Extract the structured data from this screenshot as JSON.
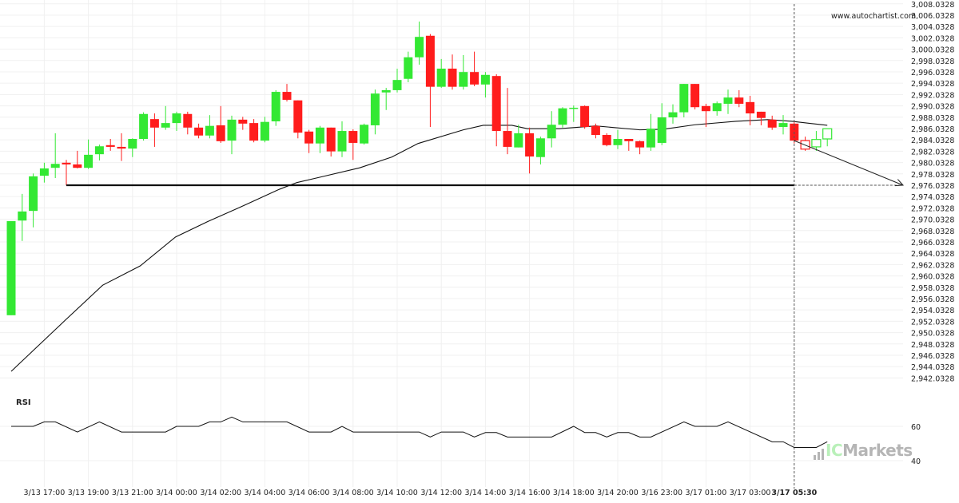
{
  "watermark": "www.autochartist.com",
  "rsi_label": "RSI",
  "brand": {
    "prefix": "IC",
    "suffix": "Markets"
  },
  "colors": {
    "bull": "#33e833",
    "bear": "#ff1c1c",
    "line": "#111111",
    "grid": "#f0f0f0"
  },
  "chart_data": {
    "type": "candlestick",
    "title": "",
    "price_axis": {
      "min": 2942.0328,
      "max": 3008.0328,
      "step": 2,
      "decimals": 4,
      "position": "right"
    },
    "x_labels": [
      {
        "label": "3/13 17:00",
        "index": 4
      },
      {
        "label": "3/13 19:00",
        "index": 8
      },
      {
        "label": "3/13 21:00",
        "index": 12
      },
      {
        "label": "3/14 00:00",
        "index": 16
      },
      {
        "label": "3/14 02:00",
        "index": 20
      },
      {
        "label": "3/14 04:00",
        "index": 24
      },
      {
        "label": "3/14 06:00",
        "index": 28
      },
      {
        "label": "3/14 08:00",
        "index": 32
      },
      {
        "label": "3/14 10:00",
        "index": 36
      },
      {
        "label": "3/14 12:00",
        "index": 40
      },
      {
        "label": "3/14 14:00",
        "index": 44
      },
      {
        "label": "3/14 16:00",
        "index": 48
      },
      {
        "label": "3/14 18:00",
        "index": 52
      },
      {
        "label": "3/14 20:00",
        "index": 56
      },
      {
        "label": "3/16 23:00",
        "index": 60
      },
      {
        "label": "3/17 01:00",
        "index": 64
      },
      {
        "label": "3/17 03:00",
        "index": 68
      },
      {
        "label": "3/17 05:30",
        "index": 72,
        "bold": true
      }
    ],
    "candles_ohlc": [
      [
        2953.1,
        2969.7,
        2953.1,
        2969.7
      ],
      [
        2969.8,
        2974.5,
        2966.2,
        2971.4
      ],
      [
        2971.5,
        2978.1,
        2968.6,
        2977.6
      ],
      [
        2977.7,
        2980.0,
        2976.5,
        2979.0
      ],
      [
        2979.1,
        2985.2,
        2977.3,
        2979.8
      ],
      [
        2980.0,
        2980.5,
        2976.0,
        2979.7
      ],
      [
        2979.7,
        2982.1,
        2979.0,
        2979.1
      ],
      [
        2979.1,
        2984.1,
        2978.9,
        2981.4
      ],
      [
        2981.5,
        2983.2,
        2980.4,
        2982.9
      ],
      [
        2983.1,
        2984.2,
        2982.1,
        2982.8
      ],
      [
        2982.8,
        2985.2,
        2980.3,
        2982.5
      ],
      [
        2982.5,
        2984.3,
        2981.0,
        2984.2
      ],
      [
        2984.2,
        2988.9,
        2983.9,
        2988.6
      ],
      [
        2987.7,
        2988.7,
        2982.8,
        2986.2
      ],
      [
        2986.2,
        2990.0,
        2985.8,
        2987.0
      ],
      [
        2987.0,
        2989.0,
        2985.6,
        2988.7
      ],
      [
        2988.6,
        2989.0,
        2985.0,
        2986.2
      ],
      [
        2986.2,
        2986.9,
        2984.3,
        2984.8
      ],
      [
        2984.8,
        2988.4,
        2984.3,
        2986.5
      ],
      [
        2986.6,
        2990.0,
        2983.5,
        2983.8
      ],
      [
        2983.9,
        2988.3,
        2981.5,
        2987.6
      ],
      [
        2987.6,
        2988.1,
        2985.8,
        2986.9
      ],
      [
        2987.0,
        2987.7,
        2983.6,
        2983.9
      ],
      [
        2983.9,
        2988.1,
        2983.6,
        2987.2
      ],
      [
        2987.3,
        2992.8,
        2986.5,
        2992.5
      ],
      [
        2992.5,
        2993.9,
        2990.8,
        2991.1
      ],
      [
        2991.0,
        2991.0,
        2984.3,
        2985.3
      ],
      [
        2985.5,
        2985.8,
        2981.7,
        2983.4
      ],
      [
        2983.4,
        2986.5,
        2981.7,
        2986.2
      ],
      [
        2986.2,
        2986.2,
        2981.1,
        2982.0
      ],
      [
        2982.0,
        2987.3,
        2981.0,
        2985.6
      ],
      [
        2985.6,
        2985.9,
        2980.5,
        2983.5
      ],
      [
        2983.4,
        2986.9,
        2983.2,
        2986.7
      ],
      [
        2986.6,
        2992.9,
        2985.0,
        2992.2
      ],
      [
        2992.4,
        2993.2,
        2989.3,
        2992.8
      ],
      [
        2992.8,
        2996.6,
        2992.4,
        2994.6
      ],
      [
        2994.8,
        2999.6,
        2994.2,
        2998.6
      ],
      [
        2998.6,
        3004.9,
        2997.3,
        3002.2
      ],
      [
        3002.4,
        3002.7,
        2986.3,
        2993.4
      ],
      [
        2993.4,
        2998.3,
        2993.2,
        2996.6
      ],
      [
        2996.6,
        2999.1,
        2992.9,
        2993.4
      ],
      [
        2993.4,
        2999.0,
        2992.9,
        2996.0
      ],
      [
        2996.0,
        2999.6,
        2993.5,
        2993.8
      ],
      [
        2993.8,
        2996.0,
        2991.5,
        2995.5
      ],
      [
        2995.3,
        2995.6,
        2982.9,
        2985.6
      ],
      [
        2985.6,
        2993.2,
        2981.5,
        2982.8
      ],
      [
        2982.7,
        2986.7,
        2982.7,
        2985.2
      ],
      [
        2985.2,
        2986.2,
        2978.1,
        2981.1
      ],
      [
        2981.0,
        2984.6,
        2979.7,
        2984.3
      ],
      [
        2984.3,
        2989.1,
        2982.7,
        2986.7
      ],
      [
        2986.7,
        2989.8,
        2986.2,
        2989.6
      ],
      [
        2989.6,
        2990.1,
        2987.2,
        2989.7
      ],
      [
        2990.0,
        2990.1,
        2986.0,
        2986.3
      ],
      [
        2986.5,
        2986.9,
        2984.3,
        2984.9
      ],
      [
        2984.9,
        2985.2,
        2982.9,
        2983.1
      ],
      [
        2983.1,
        2985.8,
        2982.4,
        2984.2
      ],
      [
        2984.2,
        2984.2,
        2982.1,
        2983.8
      ],
      [
        2983.8,
        2983.9,
        2981.5,
        2982.7
      ],
      [
        2982.7,
        2988.6,
        2982.1,
        2986.0
      ],
      [
        2983.5,
        2990.5,
        2983.1,
        2988.0
      ],
      [
        2988.0,
        2990.3,
        2986.9,
        2988.9
      ],
      [
        2988.9,
        2993.9,
        2988.0,
        2993.9
      ],
      [
        2993.9,
        2993.9,
        2989.4,
        2989.8
      ],
      [
        2990.0,
        2990.4,
        2986.3,
        2989.1
      ],
      [
        2989.1,
        2990.8,
        2988.3,
        2990.5
      ],
      [
        2990.4,
        2992.9,
        2988.6,
        2991.5
      ],
      [
        2991.5,
        2992.8,
        2989.8,
        2990.4
      ],
      [
        2990.7,
        2991.8,
        2986.6,
        2988.7
      ],
      [
        2989.0,
        2989.0,
        2986.6,
        2987.9
      ],
      [
        2987.6,
        2988.3,
        2985.8,
        2986.2
      ],
      [
        2986.3,
        2988.4,
        2985.0,
        2987.0
      ],
      [
        2986.9,
        2987.3,
        2983.4,
        2983.9
      ],
      [
        2983.9,
        2984.6,
        2982.1,
        2982.4
      ],
      [
        2982.8,
        2985.6,
        2982.1,
        2984.1
      ],
      [
        2984.2,
        2986.0,
        2982.9,
        2986.0
      ]
    ],
    "forecast_start_index": 73,
    "moving_average": [
      [
        1,
        2943.2
      ],
      [
        6,
        2952.4
      ],
      [
        9.3,
        2958.4
      ],
      [
        12.7,
        2961.8
      ],
      [
        15.9,
        2966.9
      ],
      [
        18.8,
        2969.6
      ],
      [
        21.7,
        2972.1
      ],
      [
        25.3,
        2975.3
      ],
      [
        26.9,
        2976.5
      ],
      [
        28.9,
        2977.4
      ],
      [
        32.6,
        2979.1
      ],
      [
        35.5,
        2981.0
      ],
      [
        37.9,
        2983.4
      ],
      [
        42,
        2985.8
      ],
      [
        43.8,
        2986.6
      ],
      [
        46.4,
        2986.6
      ],
      [
        47.8,
        2986.0
      ],
      [
        50.7,
        2986.0
      ],
      [
        54,
        2986.5
      ],
      [
        58,
        2985.8
      ],
      [
        60.1,
        2985.9
      ],
      [
        63,
        2986.7
      ],
      [
        66.7,
        2987.3
      ],
      [
        69.6,
        2987.6
      ],
      [
        71.8,
        2987.3
      ],
      [
        75,
        2986.6
      ]
    ],
    "support_level": 2976.0328,
    "support_start_index": 6,
    "pattern_end_index": 72,
    "forecast_arrow": {
      "from": [
        72,
        2983.9
      ],
      "to": [
        82,
        2976.0328
      ]
    },
    "rsi": {
      "ticks": [
        60,
        40
      ],
      "points": [
        [
          1,
          60
        ],
        [
          3,
          60
        ],
        [
          4,
          62.6
        ],
        [
          5,
          62.6
        ],
        [
          7,
          56.7
        ],
        [
          9,
          62.6
        ],
        [
          11,
          56.7
        ],
        [
          15,
          56.7
        ],
        [
          16,
          60
        ],
        [
          18,
          60
        ],
        [
          19,
          62.6
        ],
        [
          20,
          62.6
        ],
        [
          21,
          65.4
        ],
        [
          22,
          62.6
        ],
        [
          26,
          62.6
        ],
        [
          28,
          56.7
        ],
        [
          30,
          56.7
        ],
        [
          31,
          60
        ],
        [
          32,
          56.7
        ],
        [
          38,
          56.7
        ],
        [
          39,
          53.8
        ],
        [
          40,
          56.7
        ],
        [
          42,
          56.7
        ],
        [
          43,
          53.8
        ],
        [
          44,
          56.4
        ],
        [
          45,
          56.4
        ],
        [
          46,
          53.8
        ],
        [
          50,
          53.8
        ],
        [
          52,
          60
        ],
        [
          53,
          56.4
        ],
        [
          54,
          56.4
        ],
        [
          55,
          53.8
        ],
        [
          56,
          56.4
        ],
        [
          57,
          56.4
        ],
        [
          58,
          53.8
        ],
        [
          59,
          53.8
        ],
        [
          62,
          62.6
        ],
        [
          63,
          60
        ],
        [
          65,
          60
        ],
        [
          66,
          62.6
        ],
        [
          70,
          51.0
        ],
        [
          71,
          51.0
        ],
        [
          72,
          47.7
        ],
        [
          74,
          47.7
        ],
        [
          75,
          51.0
        ]
      ]
    }
  }
}
